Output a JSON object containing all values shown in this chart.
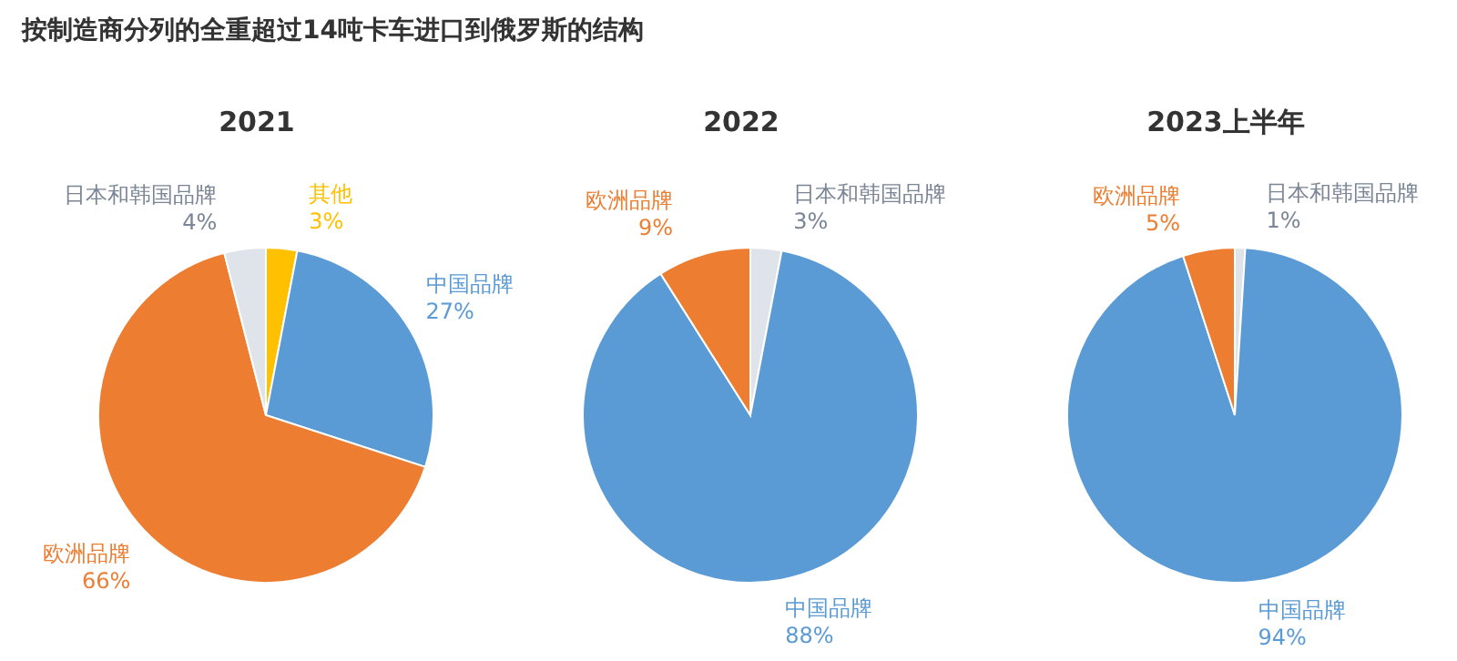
{
  "chart_data": [
    {
      "type": "pie",
      "title": "2021",
      "annotations": [
        "按制造商分列的全重超过14吨卡车进口到俄罗斯的结构"
      ],
      "categories": [
        "其他",
        "中国品牌",
        "欧洲品牌",
        "日本和韩国品牌"
      ],
      "values": [
        3,
        27,
        66,
        4
      ],
      "value_labels": [
        "3%",
        "27%",
        "66%",
        "4%"
      ],
      "colors": [
        "#ffc000",
        "#5b9bd5",
        "#ed7d31",
        "#dfe3ea"
      ]
    },
    {
      "type": "pie",
      "title": "2022",
      "categories": [
        "日本和韩国品牌",
        "中国品牌",
        "欧洲品牌"
      ],
      "values": [
        3,
        88,
        9
      ],
      "value_labels": [
        "3%",
        "88%",
        "9%"
      ],
      "colors": [
        "#dfe3ea",
        "#5b9bd5",
        "#ed7d31"
      ]
    },
    {
      "type": "pie",
      "title": "2023上半年",
      "categories": [
        "日本和韩国品牌",
        "中国品牌",
        "欧洲品牌"
      ],
      "values": [
        1,
        94,
        5
      ],
      "value_labels": [
        "1%",
        "94%",
        "5%"
      ],
      "colors": [
        "#dfe3ea",
        "#5b9bd5",
        "#ed7d31"
      ]
    }
  ]
}
